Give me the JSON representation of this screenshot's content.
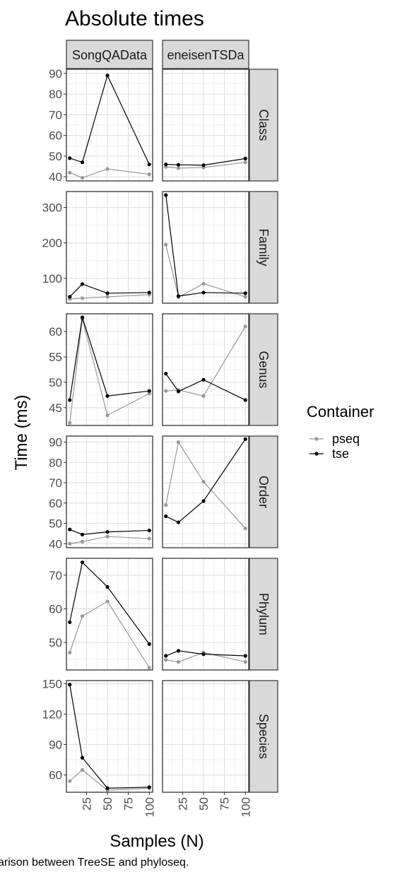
{
  "chart_data": {
    "type": "line",
    "title": "Absolute times",
    "xlabel": "Samples (N)",
    "ylabel": "Time (ms)",
    "x": [
      5,
      20,
      50,
      100
    ],
    "xticks": [
      "25",
      "50",
      "75",
      "100"
    ],
    "xlim": [
      1,
      104
    ],
    "col_facets": [
      "SongQAData",
      "GerassimenkoeneisenTSData"
    ],
    "col_facet_labels_visible": [
      "SongQAData",
      "eneisenTSDa"
    ],
    "row_facets": [
      "Class",
      "Family",
      "Genus",
      "Order",
      "Phylum",
      "Species"
    ],
    "legend": {
      "title": "Container",
      "entries": [
        {
          "name": "pseq",
          "color": "#999999"
        },
        {
          "name": "tse",
          "color": "#000000"
        }
      ]
    },
    "rows": [
      {
        "label": "Class",
        "ylim": [
          38,
          92
        ],
        "yticks": [
          40,
          50,
          60,
          70,
          80,
          90
        ],
        "panels": [
          {
            "pseq": [
              42,
              39.5,
              43.8,
              41.2
            ],
            "tse": [
              49,
              47,
              89,
              46
            ]
          },
          {
            "pseq": [
              44.8,
              44.2,
              44.5,
              47
            ],
            "tse": [
              46,
              45.8,
              45.6,
              48.8
            ]
          }
        ]
      },
      {
        "label": "Family",
        "ylim": [
          30,
          345
        ],
        "yticks": [
          100,
          200,
          300
        ],
        "panels": [
          {
            "pseq": [
              42,
              44,
              48,
              54
            ],
            "tse": [
              48,
              84,
              58,
              60
            ]
          },
          {
            "pseq": [
              195,
              47,
              85,
              48
            ],
            "tse": [
              335,
              50,
              60,
              58
            ]
          }
        ]
      },
      {
        "label": "Genus",
        "ylim": [
          41.5,
          63.5
        ],
        "yticks": [
          45,
          50,
          55,
          60
        ],
        "panels": [
          {
            "pseq": [
              42,
              62.5,
              43.5,
              47.8
            ],
            "tse": [
              46.5,
              62.8,
              47.3,
              48.3
            ]
          },
          {
            "pseq": [
              48.3,
              48.5,
              47.3,
              61
            ],
            "tse": [
              51.7,
              48.2,
              50.5,
              46.5
            ]
          }
        ]
      },
      {
        "label": "Order",
        "ylim": [
          38,
          93
        ],
        "yticks": [
          40,
          50,
          60,
          70,
          80,
          90
        ],
        "panels": [
          {
            "pseq": [
              40,
              41,
              43.5,
              42.5
            ],
            "tse": [
              47,
              44.5,
              45.8,
              46.5
            ]
          },
          {
            "pseq": [
              59,
              90,
              70.5,
              47.5
            ],
            "tse": [
              53.5,
              50.5,
              61,
              91.5
            ]
          }
        ]
      },
      {
        "label": "Phylum",
        "ylim": [
          41.8,
          75
        ],
        "yticks": [
          50,
          60,
          70
        ],
        "panels": [
          {
            "pseq": [
              47,
              57.8,
              62.2,
              42.5
            ],
            "tse": [
              56,
              73.8,
              66.5,
              49.5
            ]
          },
          {
            "pseq": [
              44.8,
              44.2,
              47,
              44.2
            ],
            "tse": [
              46,
              47.5,
              46.5,
              46
            ]
          }
        ]
      },
      {
        "label": "Species",
        "ylim": [
          43,
          153
        ],
        "yticks": [
          60,
          90,
          120,
          150
        ],
        "panels": [
          {
            "pseq": [
              54,
              65,
              45,
              47
            ],
            "tse": [
              149,
              77,
              47,
              48
            ]
          },
          {
            "pseq": [],
            "tse": []
          }
        ]
      }
    ]
  },
  "caption": "arison between TreeSE and phyloseq."
}
